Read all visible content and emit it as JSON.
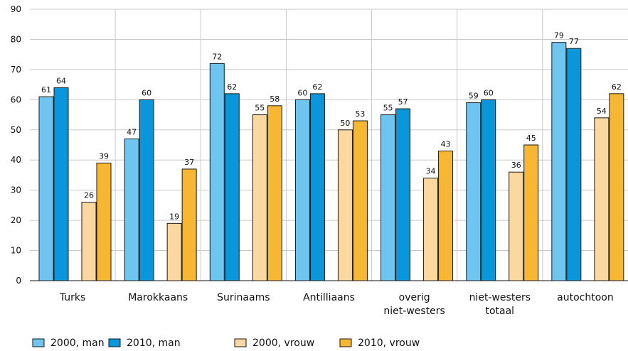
{
  "chart_data": {
    "type": "bar",
    "ylim": [
      0,
      90
    ],
    "yticks": [
      0,
      10,
      20,
      30,
      40,
      50,
      60,
      70,
      80,
      90
    ],
    "grid": true,
    "legend_position": "bottom",
    "categories": [
      [
        "Turks"
      ],
      [
        "Marokkaans"
      ],
      [
        "Surinaams"
      ],
      [
        "Antilliaans"
      ],
      [
        "overig",
        "niet-westers"
      ],
      [
        "niet-westers",
        "totaal"
      ],
      [
        "autochtoon"
      ]
    ],
    "series": [
      {
        "name": "2000, man",
        "color": "#6ec6f0",
        "values": [
          61,
          47,
          72,
          60,
          55,
          59,
          79
        ]
      },
      {
        "name": "2010, man",
        "color": "#0a96db",
        "values": [
          64,
          60,
          62,
          62,
          57,
          60,
          77
        ]
      },
      {
        "name": "2000, vrouw",
        "color": "#fad8a0",
        "values": [
          26,
          19,
          55,
          50,
          34,
          36,
          54
        ]
      },
      {
        "name": "2010, vrouw",
        "color": "#f7b733",
        "values": [
          39,
          37,
          58,
          53,
          43,
          45,
          62
        ]
      }
    ]
  }
}
